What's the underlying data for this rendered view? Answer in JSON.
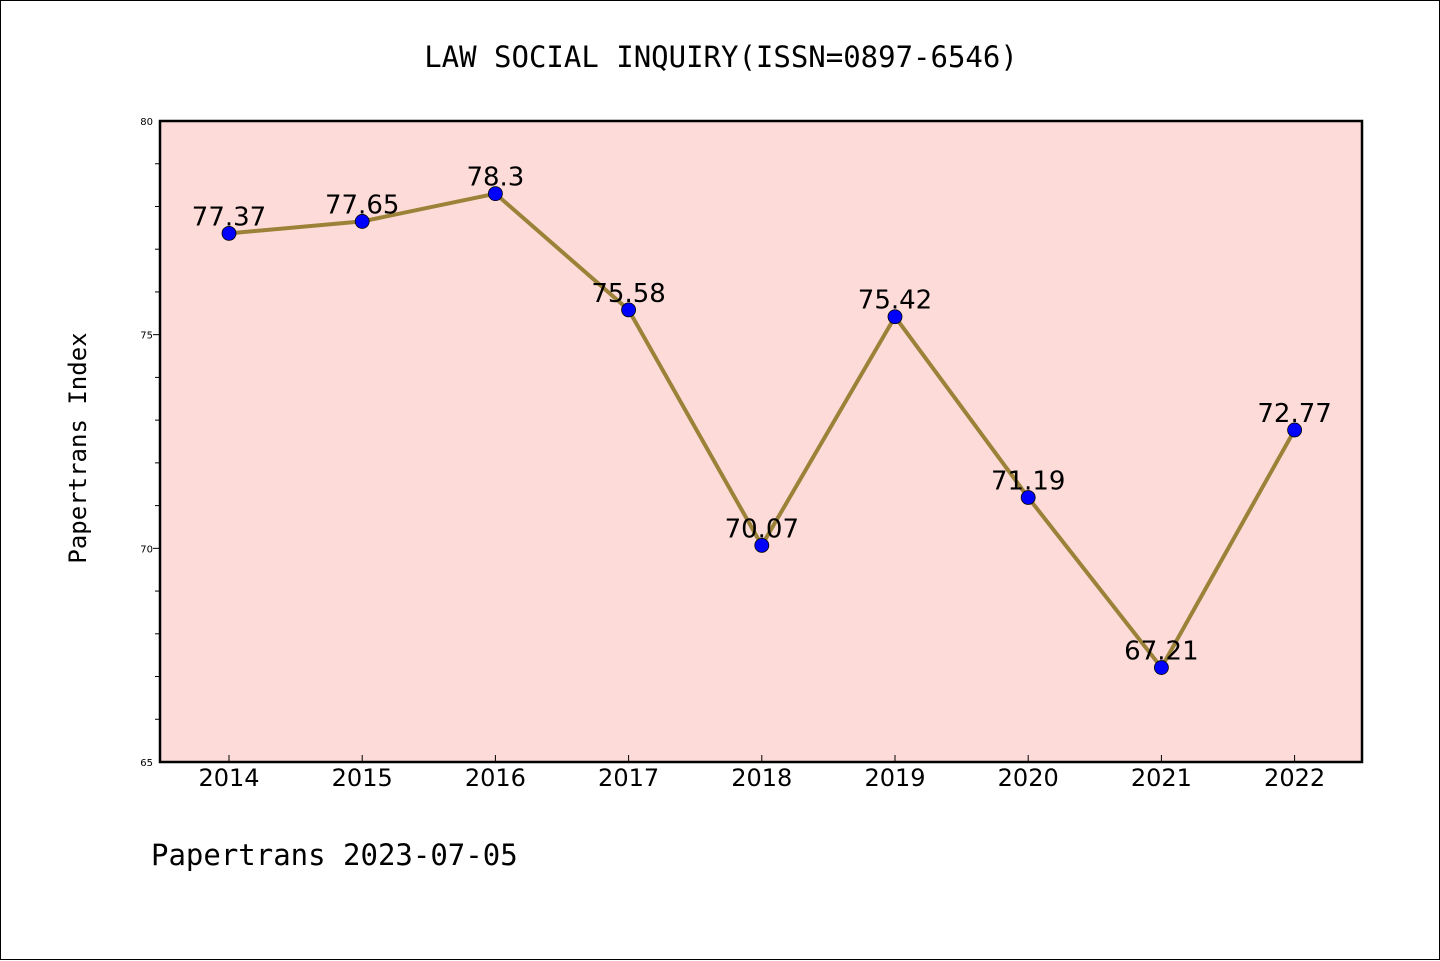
{
  "chart_data": {
    "type": "line",
    "title": "LAW SOCIAL INQUIRY(ISSN=0897-6546)",
    "xlabel": "",
    "ylabel": "Papertrans Index",
    "footer": "Papertrans 2023-07-05",
    "categories": [
      "2014",
      "2015",
      "2016",
      "2017",
      "2018",
      "2019",
      "2020",
      "2021",
      "2022"
    ],
    "series": [
      {
        "values": [
          77.37,
          77.65,
          78.3,
          75.58,
          70.07,
          75.42,
          71.19,
          67.21,
          72.77
        ],
        "labels": [
          "77.37",
          "77.65",
          "78.3",
          "75.58",
          "70.07",
          "75.42",
          "71.19",
          "67.21",
          "72.77"
        ]
      }
    ],
    "ylim": [
      65,
      80
    ],
    "yticks": [
      "65",
      "70",
      "75",
      "80"
    ],
    "grid": false,
    "colors": {
      "plot_background": "#fddbd8",
      "line": "#9b8238",
      "marker": "#0000ff",
      "axis": "#000000"
    }
  }
}
